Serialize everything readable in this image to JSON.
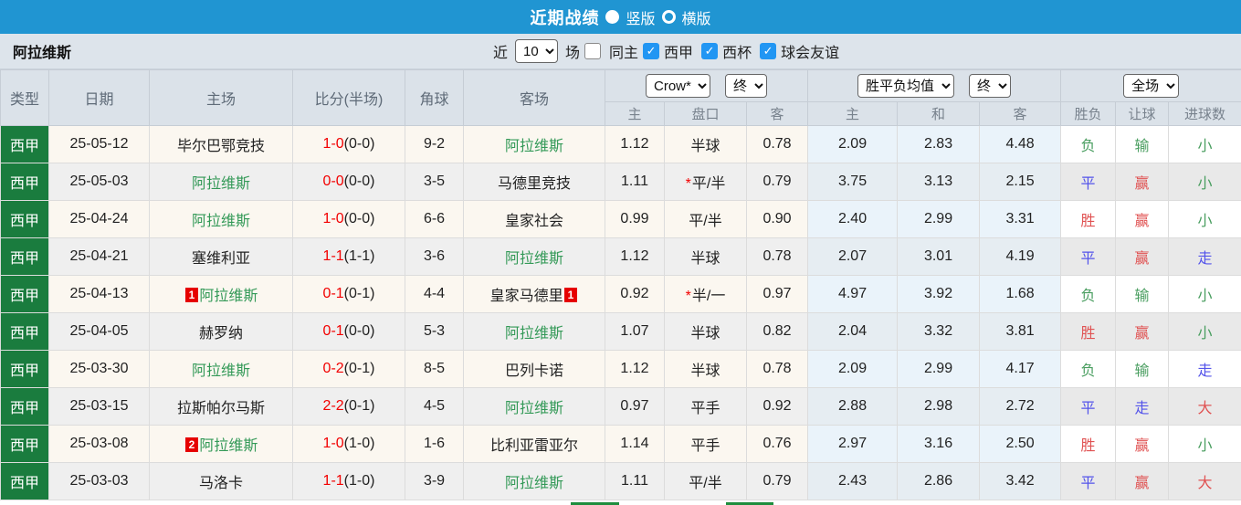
{
  "topbar": {
    "title": "近期战绩",
    "radio_vertical": "竖版",
    "radio_horizontal": "横版"
  },
  "filter": {
    "team": "阿拉维斯",
    "near_label": "近",
    "count_value": "10",
    "games_label": "场",
    "same_home_label": "同主",
    "leagues": [
      {
        "label": "西甲",
        "checked": true
      },
      {
        "label": "西杯",
        "checked": true
      },
      {
        "label": "球会友谊",
        "checked": true
      }
    ]
  },
  "table": {
    "selects": {
      "company": "Crow*",
      "final1": "终",
      "wdl_avg": "胜平负均值",
      "final2": "终",
      "scope": "全场"
    },
    "headers": {
      "type": "类型",
      "date": "日期",
      "home": "主场",
      "score": "比分(半场)",
      "corner": "角球",
      "away": "客场",
      "sub_home": "主",
      "sub_handicap": "盘口",
      "sub_away": "客",
      "sub_win": "主",
      "sub_draw": "和",
      "sub_lose": "客",
      "sub_result": "胜负",
      "sub_handicap_result": "让球",
      "sub_goals": "进球数"
    },
    "colors": {
      "accent_blue": "#2095d2",
      "type_green": "#1a7c3e",
      "team_green": "#339957",
      "score_red": "#f20000",
      "result_green": "#4a9e60",
      "result_red": "#e05252",
      "result_blue": "#5353ea",
      "checkbox_blue": "#2196f3"
    },
    "rows": [
      {
        "type": "西甲",
        "date": "25-05-12",
        "home": "毕尔巴鄂竞技",
        "home_green": false,
        "score": "1-0",
        "half": "(0-0)",
        "corner": "9-2",
        "away": "阿拉维斯",
        "away_green": true,
        "home_odds": "1.12",
        "handicap": "半球",
        "handicap_star": false,
        "away_odds": "0.78",
        "win": "2.09",
        "draw": "2.83",
        "lose": "4.48",
        "result": "负",
        "result_color": "green",
        "handicap_result": "输",
        "handicap_result_color": "green",
        "goals": "小",
        "goals_color": "green"
      },
      {
        "type": "西甲",
        "date": "25-05-03",
        "home": "阿拉维斯",
        "home_green": true,
        "score": "0-0",
        "half": "(0-0)",
        "corner": "3-5",
        "away": "马德里竞技",
        "away_green": false,
        "home_odds": "1.11",
        "handicap": "平/半",
        "handicap_star": true,
        "away_odds": "0.79",
        "win": "3.75",
        "draw": "3.13",
        "lose": "2.15",
        "result": "平",
        "result_color": "blue",
        "handicap_result": "赢",
        "handicap_result_color": "red",
        "goals": "小",
        "goals_color": "green"
      },
      {
        "type": "西甲",
        "date": "25-04-24",
        "home": "阿拉维斯",
        "home_green": true,
        "score": "1-0",
        "half": "(0-0)",
        "corner": "6-6",
        "away": "皇家社会",
        "away_green": false,
        "home_odds": "0.99",
        "handicap": "平/半",
        "handicap_star": false,
        "away_odds": "0.90",
        "win": "2.40",
        "draw": "2.99",
        "lose": "3.31",
        "result": "胜",
        "result_color": "red",
        "handicap_result": "赢",
        "handicap_result_color": "red",
        "goals": "小",
        "goals_color": "green"
      },
      {
        "type": "西甲",
        "date": "25-04-21",
        "home": "塞维利亚",
        "home_green": false,
        "score": "1-1",
        "half": "(1-1)",
        "corner": "3-6",
        "away": "阿拉维斯",
        "away_green": true,
        "home_odds": "1.12",
        "handicap": "半球",
        "handicap_star": false,
        "away_odds": "0.78",
        "win": "2.07",
        "draw": "3.01",
        "lose": "4.19",
        "result": "平",
        "result_color": "blue",
        "handicap_result": "赢",
        "handicap_result_color": "red",
        "goals": "走",
        "goals_color": "blue"
      },
      {
        "type": "西甲",
        "date": "25-04-13",
        "home": "阿拉维斯",
        "home_green": true,
        "home_card_before": "1",
        "score": "0-1",
        "half": "(0-1)",
        "corner": "4-4",
        "away": "皇家马德里",
        "away_green": false,
        "away_card_after": "1",
        "home_odds": "0.92",
        "handicap": "半/一",
        "handicap_star": true,
        "away_odds": "0.97",
        "win": "4.97",
        "draw": "3.92",
        "lose": "1.68",
        "result": "负",
        "result_color": "green",
        "handicap_result": "输",
        "handicap_result_color": "green",
        "goals": "小",
        "goals_color": "green"
      },
      {
        "type": "西甲",
        "date": "25-04-05",
        "home": "赫罗纳",
        "home_green": false,
        "score": "0-1",
        "half": "(0-0)",
        "corner": "5-3",
        "away": "阿拉维斯",
        "away_green": true,
        "home_odds": "1.07",
        "handicap": "半球",
        "handicap_star": false,
        "away_odds": "0.82",
        "win": "2.04",
        "draw": "3.32",
        "lose": "3.81",
        "result": "胜",
        "result_color": "red",
        "handicap_result": "赢",
        "handicap_result_color": "red",
        "goals": "小",
        "goals_color": "green"
      },
      {
        "type": "西甲",
        "date": "25-03-30",
        "home": "阿拉维斯",
        "home_green": true,
        "score": "0-2",
        "half": "(0-1)",
        "corner": "8-5",
        "away": "巴列卡诺",
        "away_green": false,
        "home_odds": "1.12",
        "handicap": "半球",
        "handicap_star": false,
        "away_odds": "0.78",
        "win": "2.09",
        "draw": "2.99",
        "lose": "4.17",
        "result": "负",
        "result_color": "green",
        "handicap_result": "输",
        "handicap_result_color": "green",
        "goals": "走",
        "goals_color": "blue"
      },
      {
        "type": "西甲",
        "date": "25-03-15",
        "home": "拉斯帕尔马斯",
        "home_green": false,
        "score": "2-2",
        "half": "(0-1)",
        "corner": "4-5",
        "away": "阿拉维斯",
        "away_green": true,
        "home_odds": "0.97",
        "handicap": "平手",
        "handicap_star": false,
        "away_odds": "0.92",
        "win": "2.88",
        "draw": "2.98",
        "lose": "2.72",
        "result": "平",
        "result_color": "blue",
        "handicap_result": "走",
        "handicap_result_color": "blue",
        "goals": "大",
        "goals_color": "red"
      },
      {
        "type": "西甲",
        "date": "25-03-08",
        "home": "阿拉维斯",
        "home_green": true,
        "home_card_before": "2",
        "score": "1-0",
        "half": "(1-0)",
        "corner": "1-6",
        "away": "比利亚雷亚尔",
        "away_green": false,
        "home_odds": "1.14",
        "handicap": "平手",
        "handicap_star": false,
        "away_odds": "0.76",
        "win": "2.97",
        "draw": "3.16",
        "lose": "2.50",
        "result": "胜",
        "result_color": "red",
        "handicap_result": "赢",
        "handicap_result_color": "red",
        "goals": "小",
        "goals_color": "green"
      },
      {
        "type": "西甲",
        "date": "25-03-03",
        "home": "马洛卡",
        "home_green": false,
        "score": "1-1",
        "half": "(1-0)",
        "corner": "3-9",
        "away": "阿拉维斯",
        "away_green": true,
        "home_odds": "1.11",
        "handicap": "平/半",
        "handicap_star": false,
        "away_odds": "0.79",
        "win": "2.43",
        "draw": "2.86",
        "lose": "3.42",
        "result": "平",
        "result_color": "blue",
        "handicap_result": "赢",
        "handicap_result_color": "red",
        "goals": "大",
        "goals_color": "red"
      }
    ]
  }
}
